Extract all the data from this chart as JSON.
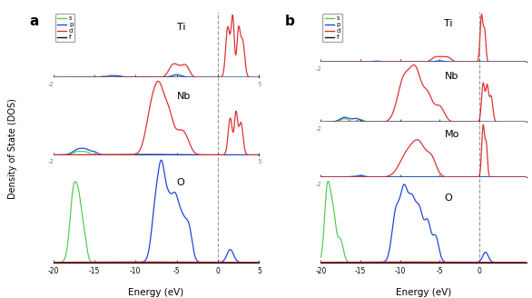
{
  "xlim_a": [
    -20,
    5
  ],
  "xlim_b": [
    -20,
    6
  ],
  "xticks_a": [
    -20,
    -15,
    -10,
    -5,
    0,
    5
  ],
  "xticks_b": [
    -20,
    -15,
    -10,
    -5,
    0
  ],
  "fermi_level": 0,
  "colors": {
    "s": "#55cc55",
    "p": "#2244dd",
    "d": "#dd3333",
    "f": "#111111"
  },
  "legend_labels": [
    "s",
    "p",
    "d",
    "f"
  ],
  "xlabel": "Energy (eV)",
  "ylabel": "Density of State (DOS)",
  "panel_a_label": "a",
  "panel_b_label": "b"
}
